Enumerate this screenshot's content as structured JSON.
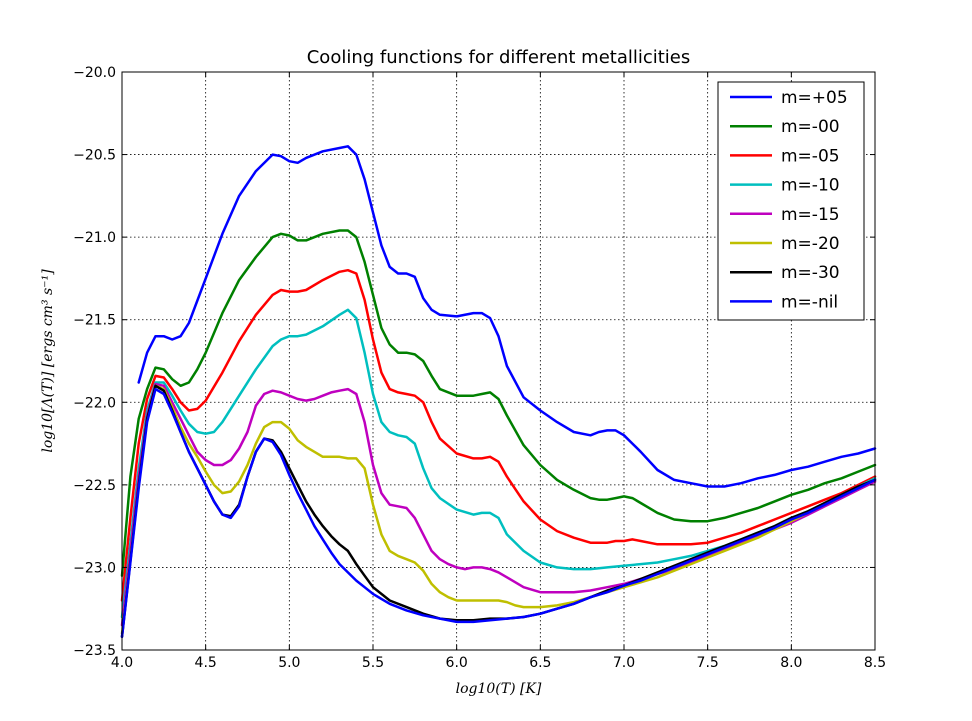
{
  "chart_data": {
    "type": "line",
    "title": "Cooling functions for different metallicities",
    "xlabel": "log10(T) [K]",
    "ylabel": "log10[Λ(T)] [ergs cm³ s⁻¹]",
    "xlim": [
      4.0,
      8.5
    ],
    "ylim": [
      -23.5,
      -20.0
    ],
    "xticks": [
      4.0,
      4.5,
      5.0,
      5.5,
      6.0,
      6.5,
      7.0,
      7.5,
      8.0,
      8.5
    ],
    "yticks": [
      -20.0,
      -20.5,
      -21.0,
      -21.5,
      -22.0,
      -22.5,
      -23.0,
      -23.5
    ],
    "xtick_labels": [
      "4.0",
      "4.5",
      "5.0",
      "5.5",
      "6.0",
      "6.5",
      "7.0",
      "7.5",
      "8.0",
      "8.5"
    ],
    "ytick_labels": [
      "−20.0",
      "−20.5",
      "−21.0",
      "−21.5",
      "−22.0",
      "−22.5",
      "−23.0",
      "−23.5"
    ],
    "grid": true,
    "legend_position": "top-right",
    "series": [
      {
        "name": "m=+05",
        "color": "#0000ff",
        "x": [
          4.1,
          4.15,
          4.2,
          4.25,
          4.3,
          4.35,
          4.4,
          4.5,
          4.6,
          4.7,
          4.8,
          4.9,
          4.95,
          5.0,
          5.05,
          5.1,
          5.2,
          5.3,
          5.35,
          5.4,
          5.45,
          5.5,
          5.55,
          5.6,
          5.65,
          5.7,
          5.75,
          5.8,
          5.85,
          5.9,
          6.0,
          6.1,
          6.15,
          6.2,
          6.25,
          6.3,
          6.4,
          6.5,
          6.6,
          6.7,
          6.8,
          6.85,
          6.9,
          6.95,
          7.0,
          7.05,
          7.1,
          7.2,
          7.3,
          7.4,
          7.5,
          7.6,
          7.7,
          7.8,
          7.9,
          8.0,
          8.1,
          8.2,
          8.3,
          8.4,
          8.5
        ],
        "y": [
          -21.88,
          -21.7,
          -21.6,
          -21.6,
          -21.62,
          -21.6,
          -21.52,
          -21.25,
          -20.98,
          -20.75,
          -20.6,
          -20.5,
          -20.51,
          -20.54,
          -20.55,
          -20.52,
          -20.48,
          -20.46,
          -20.45,
          -20.5,
          -20.65,
          -20.85,
          -21.05,
          -21.18,
          -21.22,
          -21.22,
          -21.24,
          -21.37,
          -21.44,
          -21.47,
          -21.48,
          -21.46,
          -21.46,
          -21.49,
          -21.6,
          -21.78,
          -21.97,
          -22.05,
          -22.12,
          -22.18,
          -22.2,
          -22.18,
          -22.17,
          -22.17,
          -22.2,
          -22.25,
          -22.3,
          -22.41,
          -22.47,
          -22.49,
          -22.51,
          -22.51,
          -22.49,
          -22.46,
          -22.44,
          -22.41,
          -22.39,
          -22.36,
          -22.33,
          -22.31,
          -22.28
        ]
      },
      {
        "name": "m=-00",
        "color": "#008000",
        "x": [
          4.0,
          4.05,
          4.1,
          4.15,
          4.2,
          4.25,
          4.3,
          4.35,
          4.4,
          4.45,
          4.5,
          4.6,
          4.7,
          4.8,
          4.9,
          4.95,
          5.0,
          5.05,
          5.1,
          5.2,
          5.3,
          5.35,
          5.4,
          5.45,
          5.5,
          5.55,
          5.6,
          5.65,
          5.7,
          5.75,
          5.8,
          5.85,
          5.9,
          6.0,
          6.1,
          6.15,
          6.2,
          6.25,
          6.3,
          6.4,
          6.5,
          6.6,
          6.7,
          6.8,
          6.85,
          6.9,
          6.95,
          7.0,
          7.05,
          7.1,
          7.2,
          7.3,
          7.4,
          7.5,
          7.6,
          7.7,
          7.8,
          7.9,
          8.0,
          8.1,
          8.2,
          8.3,
          8.4,
          8.5
        ],
        "y": [
          -23.05,
          -22.45,
          -22.1,
          -21.92,
          -21.79,
          -21.8,
          -21.86,
          -21.9,
          -21.88,
          -21.8,
          -21.7,
          -21.46,
          -21.26,
          -21.12,
          -21.0,
          -20.98,
          -20.99,
          -21.02,
          -21.02,
          -20.98,
          -20.96,
          -20.96,
          -21.0,
          -21.15,
          -21.35,
          -21.55,
          -21.65,
          -21.7,
          -21.7,
          -21.71,
          -21.75,
          -21.84,
          -21.92,
          -21.96,
          -21.96,
          -21.95,
          -21.94,
          -21.98,
          -22.08,
          -22.26,
          -22.38,
          -22.47,
          -22.53,
          -22.58,
          -22.59,
          -22.59,
          -22.58,
          -22.57,
          -22.58,
          -22.61,
          -22.67,
          -22.71,
          -22.72,
          -22.72,
          -22.7,
          -22.67,
          -22.64,
          -22.6,
          -22.56,
          -22.53,
          -22.49,
          -22.46,
          -22.42,
          -22.38
        ]
      },
      {
        "name": "m=-05",
        "color": "#ff0000",
        "x": [
          4.0,
          4.05,
          4.1,
          4.15,
          4.2,
          4.25,
          4.3,
          4.35,
          4.4,
          4.45,
          4.5,
          4.6,
          4.7,
          4.8,
          4.9,
          4.95,
          5.0,
          5.05,
          5.1,
          5.2,
          5.3,
          5.35,
          5.4,
          5.45,
          5.5,
          5.55,
          5.6,
          5.65,
          5.7,
          5.75,
          5.8,
          5.85,
          5.9,
          6.0,
          6.1,
          6.15,
          6.2,
          6.25,
          6.3,
          6.4,
          6.5,
          6.6,
          6.7,
          6.8,
          6.85,
          6.9,
          6.95,
          7.0,
          7.05,
          7.1,
          7.2,
          7.3,
          7.4,
          7.5,
          7.6,
          7.7,
          7.8,
          7.9,
          8.0,
          8.1,
          8.2,
          8.3,
          8.4,
          8.5
        ],
        "y": [
          -23.2,
          -22.7,
          -22.25,
          -21.98,
          -21.84,
          -21.85,
          -21.92,
          -22.0,
          -22.05,
          -22.04,
          -21.99,
          -21.82,
          -21.63,
          -21.47,
          -21.35,
          -21.32,
          -21.33,
          -21.33,
          -21.32,
          -21.26,
          -21.21,
          -21.2,
          -21.22,
          -21.38,
          -21.62,
          -21.82,
          -21.92,
          -21.94,
          -21.95,
          -21.96,
          -22.0,
          -22.12,
          -22.22,
          -22.31,
          -22.34,
          -22.34,
          -22.33,
          -22.36,
          -22.45,
          -22.6,
          -22.71,
          -22.78,
          -22.82,
          -22.85,
          -22.85,
          -22.85,
          -22.84,
          -22.84,
          -22.83,
          -22.84,
          -22.86,
          -22.86,
          -22.86,
          -22.85,
          -22.82,
          -22.79,
          -22.75,
          -22.71,
          -22.67,
          -22.63,
          -22.59,
          -22.55,
          -22.5,
          -22.45
        ]
      },
      {
        "name": "m=-10",
        "color": "#00bfbf",
        "x": [
          4.0,
          4.05,
          4.1,
          4.15,
          4.2,
          4.25,
          4.3,
          4.35,
          4.4,
          4.45,
          4.5,
          4.55,
          4.6,
          4.7,
          4.8,
          4.9,
          4.95,
          5.0,
          5.05,
          5.1,
          5.2,
          5.3,
          5.35,
          5.4,
          5.45,
          5.5,
          5.55,
          5.6,
          5.65,
          5.7,
          5.75,
          5.8,
          5.85,
          5.9,
          6.0,
          6.1,
          6.15,
          6.2,
          6.25,
          6.3,
          6.4,
          6.5,
          6.6,
          6.7,
          6.8,
          6.9,
          7.0,
          7.1,
          7.2,
          7.3,
          7.4,
          7.5,
          7.6,
          7.7,
          7.8,
          7.9,
          8.0,
          8.1,
          8.2,
          8.3,
          8.4,
          8.5
        ],
        "y": [
          -23.3,
          -22.85,
          -22.4,
          -22.05,
          -21.88,
          -21.88,
          -21.96,
          -22.05,
          -22.13,
          -22.18,
          -22.19,
          -22.18,
          -22.12,
          -21.96,
          -21.8,
          -21.66,
          -21.62,
          -21.6,
          -21.6,
          -21.59,
          -21.54,
          -21.47,
          -21.44,
          -21.49,
          -21.7,
          -21.95,
          -22.12,
          -22.18,
          -22.2,
          -22.21,
          -22.25,
          -22.4,
          -22.52,
          -22.58,
          -22.65,
          -22.68,
          -22.67,
          -22.67,
          -22.7,
          -22.8,
          -22.9,
          -22.97,
          -23.0,
          -23.01,
          -23.01,
          -23.0,
          -22.99,
          -22.98,
          -22.97,
          -22.95,
          -22.93,
          -22.9,
          -22.87,
          -22.83,
          -22.79,
          -22.75,
          -22.7,
          -22.66,
          -22.61,
          -22.56,
          -22.51,
          -22.46
        ]
      },
      {
        "name": "m=-15",
        "color": "#bf00bf",
        "x": [
          4.0,
          4.05,
          4.1,
          4.15,
          4.2,
          4.25,
          4.3,
          4.35,
          4.4,
          4.45,
          4.5,
          4.55,
          4.6,
          4.65,
          4.7,
          4.75,
          4.8,
          4.85,
          4.9,
          4.95,
          5.0,
          5.05,
          5.1,
          5.15,
          5.2,
          5.25,
          5.3,
          5.35,
          5.4,
          5.45,
          5.5,
          5.55,
          5.6,
          5.65,
          5.7,
          5.75,
          5.8,
          5.85,
          5.9,
          5.95,
          6.0,
          6.05,
          6.1,
          6.15,
          6.2,
          6.25,
          6.3,
          6.4,
          6.5,
          6.6,
          6.7,
          6.8,
          6.9,
          7.0,
          7.1,
          7.2,
          7.3,
          7.4,
          7.5,
          7.6,
          7.7,
          7.8,
          7.9,
          8.0,
          8.1,
          8.2,
          8.3,
          8.4,
          8.5
        ],
        "y": [
          -23.35,
          -22.9,
          -22.45,
          -22.08,
          -21.89,
          -21.9,
          -22.0,
          -22.1,
          -22.2,
          -22.3,
          -22.35,
          -22.38,
          -22.38,
          -22.35,
          -22.28,
          -22.18,
          -22.02,
          -21.95,
          -21.93,
          -21.94,
          -21.96,
          -21.98,
          -21.99,
          -21.98,
          -21.96,
          -21.94,
          -21.93,
          -21.92,
          -21.95,
          -22.12,
          -22.38,
          -22.55,
          -22.62,
          -22.63,
          -22.64,
          -22.7,
          -22.8,
          -22.9,
          -22.95,
          -22.98,
          -23.0,
          -23.01,
          -23.0,
          -23.0,
          -23.01,
          -23.03,
          -23.06,
          -23.12,
          -23.15,
          -23.15,
          -23.15,
          -23.14,
          -23.12,
          -23.1,
          -23.07,
          -23.04,
          -23.01,
          -22.97,
          -22.93,
          -22.89,
          -22.85,
          -22.81,
          -22.77,
          -22.73,
          -22.68,
          -22.63,
          -22.58,
          -22.53,
          -22.48
        ]
      },
      {
        "name": "m=-20",
        "color": "#bfbf00",
        "x": [
          4.0,
          4.05,
          4.1,
          4.15,
          4.2,
          4.25,
          4.3,
          4.35,
          4.4,
          4.45,
          4.5,
          4.55,
          4.6,
          4.65,
          4.7,
          4.75,
          4.8,
          4.85,
          4.9,
          4.95,
          5.0,
          5.05,
          5.1,
          5.15,
          5.2,
          5.25,
          5.3,
          5.35,
          5.4,
          5.45,
          5.5,
          5.55,
          5.6,
          5.65,
          5.7,
          5.75,
          5.8,
          5.85,
          5.9,
          5.95,
          6.0,
          6.1,
          6.2,
          6.25,
          6.3,
          6.35,
          6.4,
          6.5,
          6.6,
          6.7,
          6.8,
          6.9,
          7.0,
          7.1,
          7.2,
          7.3,
          7.4,
          7.5,
          7.6,
          7.7,
          7.8,
          7.9,
          8.0,
          8.1,
          8.2,
          8.3,
          8.4,
          8.5
        ],
        "y": [
          -23.4,
          -22.95,
          -22.5,
          -22.1,
          -21.9,
          -21.92,
          -22.03,
          -22.15,
          -22.25,
          -22.33,
          -22.42,
          -22.5,
          -22.55,
          -22.54,
          -22.48,
          -22.38,
          -22.25,
          -22.15,
          -22.12,
          -22.12,
          -22.16,
          -22.23,
          -22.27,
          -22.3,
          -22.33,
          -22.33,
          -22.33,
          -22.34,
          -22.34,
          -22.4,
          -22.62,
          -22.8,
          -22.9,
          -22.93,
          -22.95,
          -22.97,
          -23.02,
          -23.1,
          -23.15,
          -23.18,
          -23.2,
          -23.2,
          -23.2,
          -23.2,
          -23.21,
          -23.23,
          -23.24,
          -23.24,
          -23.23,
          -23.21,
          -23.18,
          -23.15,
          -23.12,
          -23.09,
          -23.06,
          -23.02,
          -22.98,
          -22.94,
          -22.9,
          -22.86,
          -22.82,
          -22.77,
          -22.72,
          -22.67,
          -22.62,
          -22.57,
          -22.52,
          -22.47
        ]
      },
      {
        "name": "m=-30",
        "color": "#000000",
        "x": [
          4.0,
          4.05,
          4.1,
          4.15,
          4.2,
          4.25,
          4.3,
          4.35,
          4.4,
          4.45,
          4.5,
          4.55,
          4.6,
          4.65,
          4.7,
          4.75,
          4.8,
          4.85,
          4.9,
          4.95,
          5.0,
          5.05,
          5.1,
          5.15,
          5.2,
          5.25,
          5.3,
          5.35,
          5.4,
          5.45,
          5.5,
          5.55,
          5.6,
          5.7,
          5.8,
          5.9,
          6.0,
          6.1,
          6.2,
          6.3,
          6.4,
          6.5,
          6.6,
          6.7,
          6.8,
          6.9,
          7.0,
          7.1,
          7.2,
          7.3,
          7.4,
          7.5,
          7.6,
          7.7,
          7.8,
          7.9,
          8.0,
          8.1,
          8.2,
          8.3,
          8.4,
          8.5
        ],
        "y": [
          -23.42,
          -22.96,
          -22.5,
          -22.1,
          -21.9,
          -21.93,
          -22.05,
          -22.18,
          -22.3,
          -22.4,
          -22.5,
          -22.6,
          -22.68,
          -22.69,
          -22.62,
          -22.45,
          -22.3,
          -22.22,
          -22.23,
          -22.3,
          -22.4,
          -22.5,
          -22.6,
          -22.68,
          -22.75,
          -22.81,
          -22.86,
          -22.9,
          -22.98,
          -23.05,
          -23.12,
          -23.16,
          -23.2,
          -23.24,
          -23.28,
          -23.31,
          -23.32,
          -23.32,
          -23.31,
          -23.31,
          -23.3,
          -23.28,
          -23.25,
          -23.22,
          -23.18,
          -23.14,
          -23.11,
          -23.07,
          -23.03,
          -22.99,
          -22.95,
          -22.91,
          -22.87,
          -22.83,
          -22.79,
          -22.75,
          -22.7,
          -22.66,
          -22.61,
          -22.56,
          -22.51,
          -22.47
        ]
      },
      {
        "name": "m=-nil",
        "color": "#0000ff",
        "x": [
          4.0,
          4.05,
          4.1,
          4.15,
          4.2,
          4.25,
          4.3,
          4.35,
          4.4,
          4.45,
          4.5,
          4.55,
          4.6,
          4.65,
          4.7,
          4.75,
          4.8,
          4.85,
          4.9,
          4.95,
          5.0,
          5.05,
          5.1,
          5.15,
          5.2,
          5.25,
          5.3,
          5.35,
          5.4,
          5.45,
          5.5,
          5.6,
          5.7,
          5.8,
          5.9,
          6.0,
          6.1,
          6.2,
          6.3,
          6.4,
          6.5,
          6.6,
          6.7,
          6.8,
          6.9,
          7.0,
          7.1,
          7.2,
          7.3,
          7.4,
          7.5,
          7.6,
          7.7,
          7.8,
          7.9,
          8.0,
          8.1,
          8.2,
          8.3,
          8.4,
          8.5
        ],
        "y": [
          -23.42,
          -22.97,
          -22.52,
          -22.12,
          -21.92,
          -21.95,
          -22.06,
          -22.18,
          -22.3,
          -22.4,
          -22.5,
          -22.6,
          -22.68,
          -22.7,
          -22.63,
          -22.45,
          -22.3,
          -22.22,
          -22.24,
          -22.32,
          -22.44,
          -22.55,
          -22.65,
          -22.75,
          -22.83,
          -22.91,
          -22.98,
          -23.03,
          -23.08,
          -23.12,
          -23.16,
          -23.22,
          -23.26,
          -23.29,
          -23.31,
          -23.33,
          -23.33,
          -23.32,
          -23.31,
          -23.3,
          -23.28,
          -23.25,
          -23.22,
          -23.18,
          -23.15,
          -23.11,
          -23.08,
          -23.04,
          -23.0,
          -22.96,
          -22.92,
          -22.88,
          -22.84,
          -22.8,
          -22.76,
          -22.71,
          -22.67,
          -22.62,
          -22.57,
          -22.52,
          -22.47
        ]
      }
    ]
  }
}
